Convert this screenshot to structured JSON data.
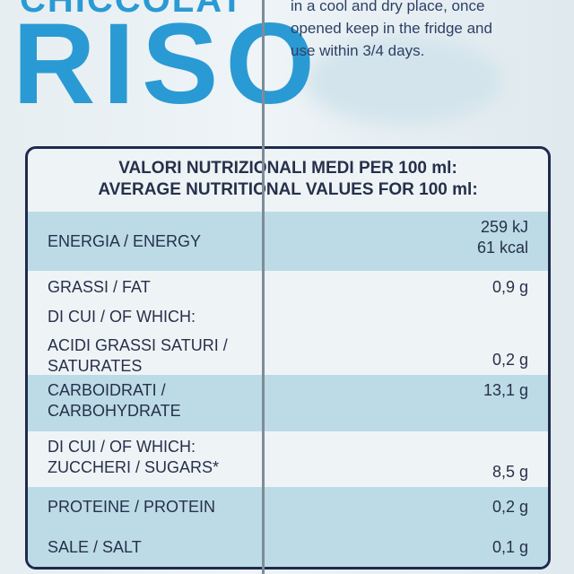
{
  "package": {
    "brand": "CHICCOLAT",
    "product": "RISO",
    "storage": [
      "in a cool and dry place, once",
      "opened keep in the fridge and",
      "use within 3/4 days."
    ]
  },
  "table": {
    "header": [
      "VALORI NUTRIZIONALI MEDI PER 100 ml:",
      "AVERAGE NUTRITIONAL VALUES FOR 100 ml:"
    ],
    "rows": [
      {
        "label": [
          "ENERGIA / ENERGY"
        ],
        "value": [
          "259 kJ",
          "61 kcal"
        ]
      },
      {
        "label": [
          "GRASSI / FAT"
        ],
        "value": [
          "0,9 g"
        ]
      },
      {
        "label": [
          "DI CUI / OF WHICH:"
        ]
      },
      {
        "label": [
          "ACIDI GRASSI SATURI /",
          "SATURATES"
        ],
        "value": [
          "0,2 g"
        ]
      },
      {
        "label": [
          "CARBOIDRATI /",
          "CARBOHYDRATE"
        ],
        "value": [
          "13,1 g"
        ]
      },
      {
        "label": [
          "DI CUI / OF WHICH:",
          "ZUCCHERI / SUGARS*"
        ],
        "value": [
          "8,5 g"
        ]
      },
      {
        "label": [
          "PROTEINE / PROTEIN"
        ],
        "value": [
          "0,2 g"
        ]
      },
      {
        "label": [
          "SALE / SALT"
        ],
        "value": [
          "0,1 g"
        ]
      }
    ]
  }
}
